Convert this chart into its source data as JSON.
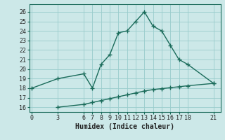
{
  "xlabel": "Humidex (Indice chaleur)",
  "bg_color": "#cce8e8",
  "grid_color": "#99cccc",
  "line_color": "#1a6b5a",
  "upper_x": [
    0,
    3,
    6,
    7,
    8,
    9,
    10,
    11,
    12,
    13,
    14,
    15,
    16,
    17,
    18,
    21
  ],
  "upper_y": [
    18,
    19,
    19.5,
    18,
    20.5,
    21.5,
    23.8,
    24,
    25,
    26,
    24.5,
    24,
    22.5,
    21,
    20.5,
    18.5
  ],
  "lower_x": [
    3,
    6,
    7,
    8,
    9,
    10,
    11,
    12,
    13,
    14,
    15,
    16,
    17,
    18,
    21
  ],
  "lower_y": [
    16,
    16.3,
    16.5,
    16.7,
    16.9,
    17.1,
    17.3,
    17.5,
    17.7,
    17.85,
    17.95,
    18.05,
    18.15,
    18.25,
    18.5
  ],
  "ylim": [
    15.5,
    26.8
  ],
  "yticks": [
    16,
    17,
    18,
    19,
    20,
    21,
    22,
    23,
    24,
    25,
    26
  ],
  "xticks": [
    0,
    3,
    6,
    7,
    8,
    9,
    10,
    11,
    12,
    13,
    14,
    15,
    16,
    17,
    18,
    21
  ],
  "xlim": [
    -0.3,
    21.8
  ],
  "xlabel_fontsize": 7,
  "tick_fontsize": 6,
  "marker_size": 4,
  "linewidth": 1.0
}
